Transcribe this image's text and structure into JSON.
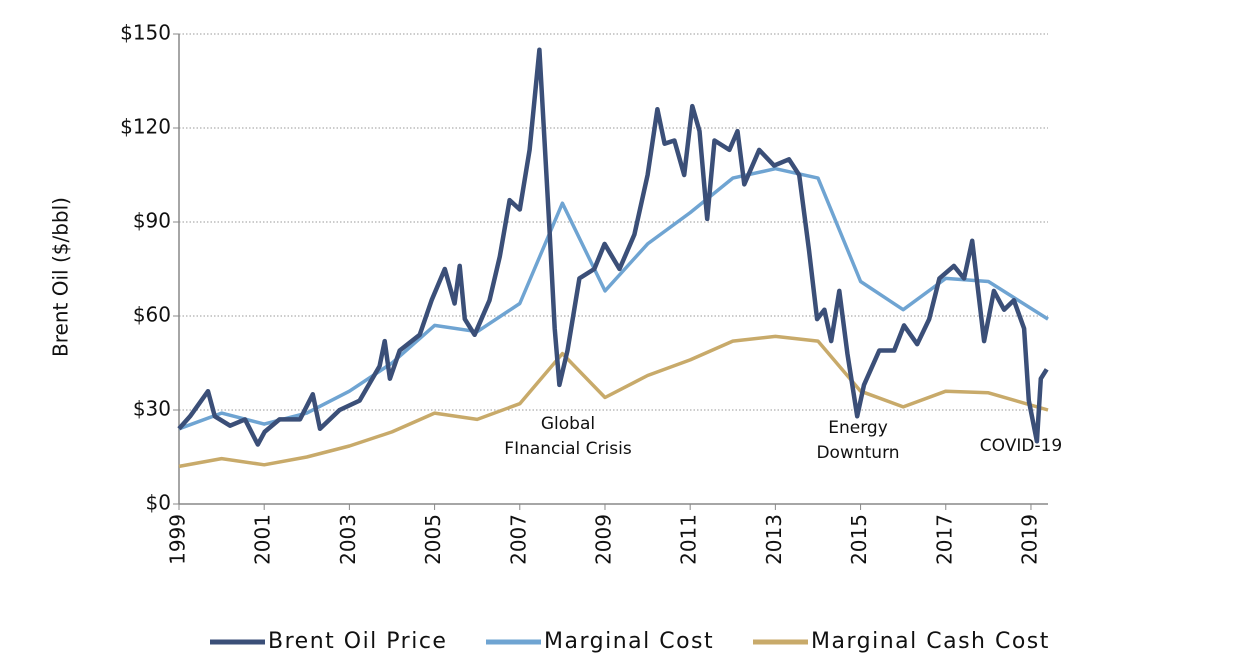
{
  "chart_data": {
    "type": "line",
    "y_label": "Brent Oil ($/bbl)",
    "xlim": [
      1999,
      2019.4
    ],
    "xticks": [
      1999,
      2001,
      2003,
      2005,
      2007,
      2009,
      2011,
      2013,
      2015,
      2017,
      2019
    ],
    "ylim": [
      0,
      150
    ],
    "yticks": [
      {
        "value": 0,
        "label": "$0"
      },
      {
        "value": 30,
        "label": "$30"
      },
      {
        "value": 60,
        "label": "$60"
      },
      {
        "value": 90,
        "label": "$90"
      },
      {
        "value": 120,
        "label": "$120"
      },
      {
        "value": 150,
        "label": "$150"
      }
    ],
    "grid": true,
    "legend": "bottom",
    "series": [
      {
        "name": "Brent Oil Price",
        "color": "#3b4f78",
        "x": [
          1999.0,
          1999.26,
          1999.68,
          1999.84,
          2000.2,
          2000.55,
          2000.85,
          2001.01,
          2001.36,
          2001.84,
          2002.14,
          2002.31,
          2002.77,
          2003.24,
          2003.71,
          2003.83,
          2003.95,
          2004.18,
          2004.65,
          2004.93,
          2005.24,
          2005.47,
          2005.59,
          2005.71,
          2005.94,
          2006.29,
          2006.53,
          2006.76,
          2007.0,
          2007.23,
          2007.46,
          2007.58,
          2007.7,
          2007.82,
          2007.93,
          2008.12,
          2008.4,
          2008.75,
          2008.99,
          2009.34,
          2009.69,
          2010.0,
          2010.23,
          2010.4,
          2010.63,
          2010.86,
          2011.05,
          2011.22,
          2011.4,
          2011.57,
          2011.92,
          2012.11,
          2012.27,
          2012.62,
          2012.97,
          2013.32,
          2013.56,
          2013.79,
          2013.98,
          2014.15,
          2014.31,
          2014.5,
          2014.69,
          2014.92,
          2015.08,
          2015.44,
          2015.79,
          2016.02,
          2016.33,
          2016.61,
          2016.85,
          2017.19,
          2017.43,
          2017.62,
          2017.9,
          2018.13,
          2018.37,
          2018.6,
          2018.84,
          2018.95,
          2019.14,
          2019.23,
          2019.37
        ],
        "values": [
          24,
          28,
          36,
          28,
          25,
          27,
          19,
          23,
          27,
          27,
          35,
          24,
          30,
          33,
          44,
          52,
          40,
          49,
          54,
          65,
          75,
          64,
          76,
          59,
          54,
          65,
          79,
          97,
          94,
          113,
          145,
          116,
          87,
          56,
          38,
          49,
          72,
          75,
          83,
          75,
          86,
          105,
          126,
          115,
          116,
          105,
          127,
          119,
          91,
          116,
          113,
          119,
          102,
          113,
          108,
          110,
          105,
          81,
          59,
          62,
          52,
          68,
          48,
          28,
          38,
          49,
          49,
          57,
          51,
          59,
          72,
          76,
          72,
          84,
          52,
          68,
          62,
          65,
          56,
          33,
          20,
          40,
          43
        ]
      },
      {
        "name": "Marginal Cost",
        "color": "#6fa4d2",
        "x": [
          1999,
          2000,
          2001,
          2002,
          2003,
          2004,
          2005,
          2006,
          2007,
          2008,
          2009,
          2010,
          2011,
          2012,
          2013,
          2014,
          2015,
          2016,
          2017,
          2018,
          2019.4
        ],
        "values": [
          24,
          29,
          25.5,
          29,
          36,
          45,
          57,
          55,
          64,
          96,
          68,
          83,
          93,
          104,
          107,
          104,
          71,
          62,
          72,
          71,
          59
        ]
      },
      {
        "name": "Marginal Cash Cost",
        "color": "#c8aa6a",
        "x": [
          1999,
          2000,
          2001,
          2002,
          2003,
          2004,
          2005,
          2006,
          2007,
          2008,
          2009,
          2010,
          2011,
          2012,
          2013,
          2014,
          2015,
          2016,
          2017,
          2018,
          2019.4
        ],
        "values": [
          12,
          14.5,
          12.5,
          15,
          18.5,
          23,
          29,
          27,
          32,
          48,
          34,
          41,
          46,
          52,
          53.5,
          52,
          36,
          31,
          36,
          35.5,
          30
        ]
      }
    ],
    "annotations": [
      [
        "Global",
        "FInancial Crisis"
      ],
      [
        "Energy",
        "Downturn"
      ],
      [
        "COVID-19"
      ]
    ]
  }
}
